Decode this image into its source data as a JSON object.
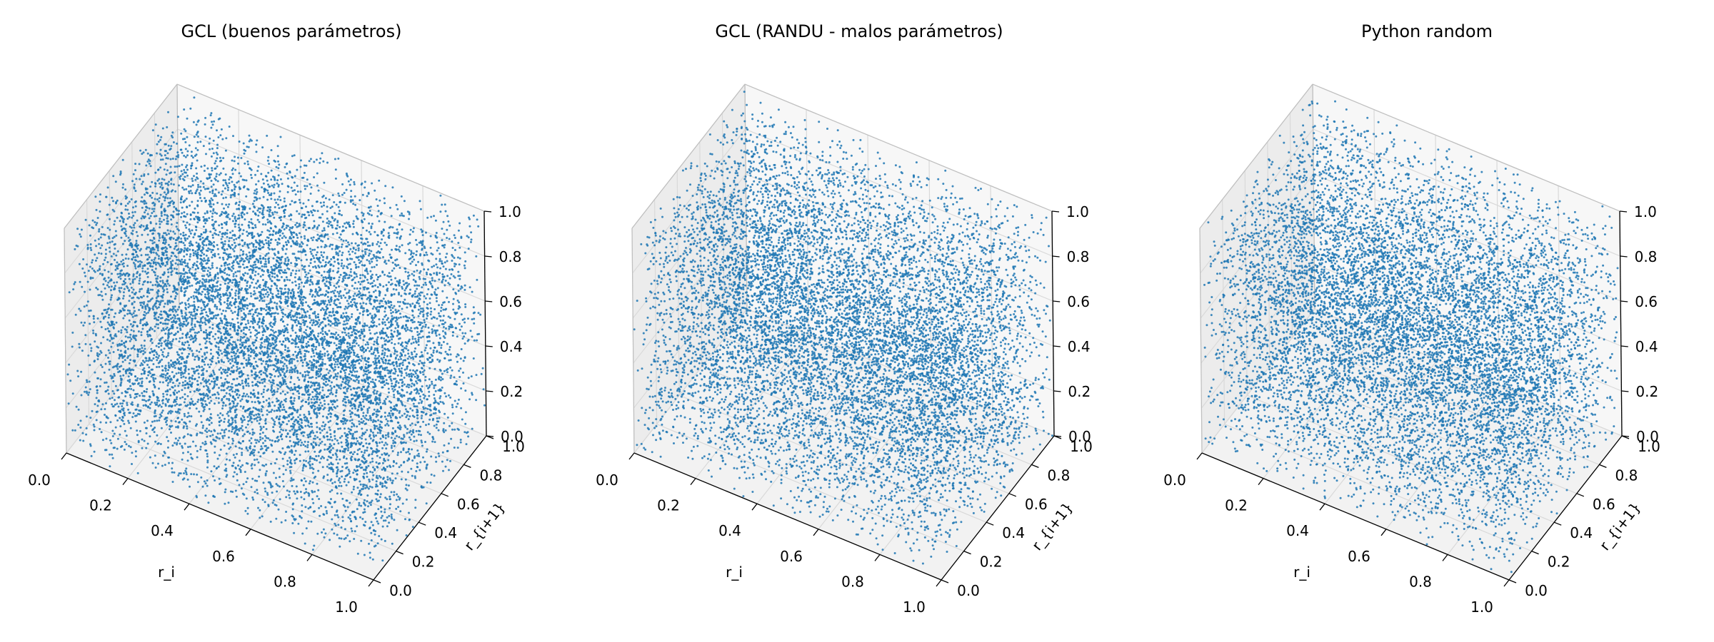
{
  "chart_data": [
    {
      "type": "scatter",
      "projection": "3d",
      "title": "GCL (buenos parámetros)",
      "xlabel": "r_i",
      "ylabel": "r_{i+1}",
      "zlabel": "",
      "xlim": [
        0,
        1
      ],
      "ylim": [
        0,
        1
      ],
      "zlim": [
        0,
        1
      ],
      "x_ticks": [
        "0.0",
        "0.2",
        "0.4",
        "0.6",
        "0.8",
        "1.0"
      ],
      "y_ticks": [
        "0.0",
        "0.2",
        "0.4",
        "0.6",
        "0.8",
        "1.0"
      ],
      "z_ticks": [
        "0.0",
        "0.2",
        "0.4",
        "0.6",
        "0.8",
        "1.0"
      ],
      "grid": true,
      "point_count": 10000,
      "distribution": "uniform on [0,1]^3 (r_i, r_{i+1}, r_{i+2})",
      "point_color": "#1f77b4"
    },
    {
      "type": "scatter",
      "projection": "3d",
      "title": "GCL (RANDU - malos parámetros)",
      "xlabel": "r_i",
      "ylabel": "r_{i+1}",
      "zlabel": "",
      "xlim": [
        0,
        1
      ],
      "ylim": [
        0,
        1
      ],
      "zlim": [
        0,
        1
      ],
      "x_ticks": [
        "0.0",
        "0.2",
        "0.4",
        "0.6",
        "0.8",
        "1.0"
      ],
      "y_ticks": [
        "0.0",
        "0.2",
        "0.4",
        "0.6",
        "0.8",
        "1.0"
      ],
      "z_ticks": [
        "0.0",
        "0.2",
        "0.4",
        "0.6",
        "0.8",
        "1.0"
      ],
      "grid": true,
      "point_count": 10000,
      "distribution": "uniform on [0,1]^3 (r_i, r_{i+1}, r_{i+2})",
      "point_color": "#1f77b4"
    },
    {
      "type": "scatter",
      "projection": "3d",
      "title": "Python random",
      "xlabel": "r_i",
      "ylabel": "r_{i+1}",
      "zlabel": "",
      "xlim": [
        0,
        1
      ],
      "ylim": [
        0,
        1
      ],
      "zlim": [
        0,
        1
      ],
      "x_ticks": [
        "0.0",
        "0.2",
        "0.4",
        "0.6",
        "0.8",
        "1.0"
      ],
      "y_ticks": [
        "0.0",
        "0.2",
        "0.4",
        "0.6",
        "0.8",
        "1.0"
      ],
      "z_ticks": [
        "0.0",
        "0.2",
        "0.4",
        "0.6",
        "0.8",
        "1.0"
      ],
      "grid": true,
      "point_count": 10000,
      "distribution": "uniform on [0,1]^3 (r_i, r_{i+1}, r_{i+2})",
      "point_color": "#1f77b4"
    }
  ]
}
